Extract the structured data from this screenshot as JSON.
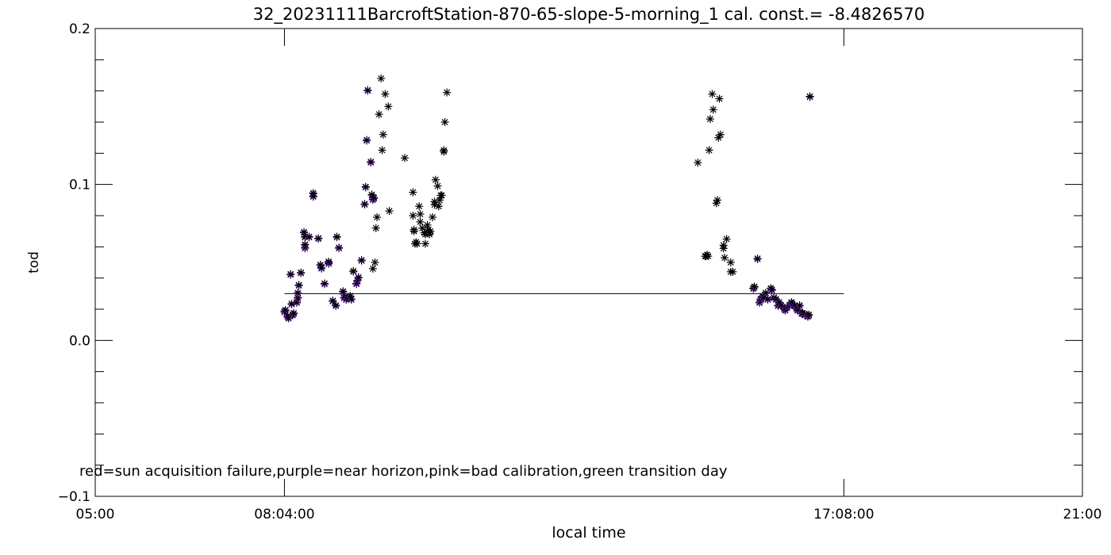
{
  "chart_data": {
    "type": "scatter",
    "title": "32_20231111BarcroftStation-870-65-slope-5-morning_1 cal. const.= -8.4826570",
    "xlabel": "local time",
    "ylabel": "tod",
    "xlim": [
      "05:00",
      "21:00"
    ],
    "ylim": [
      -0.1,
      0.2
    ],
    "x_ticks": [
      "05:00",
      "08:04:00",
      "17:08:00",
      "21:00"
    ],
    "y_ticks": [
      "-0.1",
      "0.0",
      "0.1",
      "0.2"
    ],
    "grid": false,
    "reference_line": {
      "x_start": "08:04",
      "x_end": "17:08",
      "y": 0.03
    },
    "annotation": "red=sun acquisition failure,purple=near horizon,pink=bad calibration,green transition day",
    "colors": {
      "purple": "#7a2fc9",
      "black": "#000000"
    },
    "series": [
      {
        "name": "purple",
        "points": [
          [
            "08:04",
            0.018
          ],
          [
            "08:05",
            0.019
          ],
          [
            "08:07",
            0.015
          ],
          [
            "08:08",
            0.014
          ],
          [
            "08:10",
            0.042
          ],
          [
            "08:11",
            0.023
          ],
          [
            "08:12",
            0.016
          ],
          [
            "08:13",
            0.017
          ],
          [
            "08:16",
            0.024
          ],
          [
            "08:17",
            0.027
          ],
          [
            "08:17",
            0.03
          ],
          [
            "08:18",
            0.035
          ],
          [
            "08:20",
            0.043
          ],
          [
            "08:23",
            0.069
          ],
          [
            "08:24",
            0.066
          ],
          [
            "08:24",
            0.059
          ],
          [
            "08:24",
            0.061
          ],
          [
            "08:28",
            0.066
          ],
          [
            "08:32",
            0.094
          ],
          [
            "08:32",
            0.092
          ],
          [
            "08:37",
            0.065
          ],
          [
            "08:39",
            0.048
          ],
          [
            "08:40",
            0.046
          ],
          [
            "08:43",
            0.036
          ],
          [
            "08:47",
            0.049
          ],
          [
            "08:47",
            0.05
          ],
          [
            "08:51",
            0.025
          ],
          [
            "08:54",
            0.022
          ],
          [
            "08:55",
            0.066
          ],
          [
            "08:57",
            0.059
          ],
          [
            "09:01",
            0.031
          ],
          [
            "09:02",
            0.027
          ],
          [
            "09:04",
            0.026
          ],
          [
            "09:05",
            0.027
          ],
          [
            "09:08",
            0.028
          ],
          [
            "09:09",
            0.026
          ],
          [
            "09:11",
            0.044
          ],
          [
            "09:14",
            0.036
          ],
          [
            "09:15",
            0.038
          ],
          [
            "09:16",
            0.04
          ],
          [
            "09:19",
            0.051
          ],
          [
            "09:22",
            0.087
          ],
          [
            "09:23",
            0.098
          ],
          [
            "09:24",
            0.128
          ],
          [
            "09:25",
            0.16
          ],
          [
            "09:28",
            0.114
          ],
          [
            "09:29",
            0.093
          ],
          [
            "09:30",
            0.09
          ],
          [
            "09:31",
            0.091
          ],
          [
            "15:40",
            0.033
          ],
          [
            "15:41",
            0.034
          ],
          [
            "15:44",
            0.052
          ],
          [
            "15:46",
            0.024
          ],
          [
            "15:47",
            0.026
          ],
          [
            "15:49",
            0.028
          ],
          [
            "15:50",
            0.027
          ],
          [
            "15:52",
            0.03
          ],
          [
            "15:54",
            0.026
          ],
          [
            "15:57",
            0.033
          ],
          [
            "15:58",
            0.032
          ],
          [
            "16:00",
            0.027
          ],
          [
            "16:02",
            0.026
          ],
          [
            "16:04",
            0.022
          ],
          [
            "16:05",
            0.024
          ],
          [
            "16:07",
            0.022
          ],
          [
            "16:10",
            0.02
          ],
          [
            "16:11",
            0.019
          ],
          [
            "16:13",
            0.021
          ],
          [
            "16:15",
            0.022
          ],
          [
            "16:17",
            0.024
          ],
          [
            "16:18",
            0.023
          ],
          [
            "16:20",
            0.022
          ],
          [
            "16:22",
            0.02
          ],
          [
            "16:23",
            0.019
          ],
          [
            "16:25",
            0.022
          ],
          [
            "16:27",
            0.017
          ],
          [
            "16:28",
            0.017
          ],
          [
            "16:30",
            0.016
          ],
          [
            "16:32",
            0.016
          ],
          [
            "16:33",
            0.015
          ],
          [
            "16:34",
            0.016
          ],
          [
            "16:35",
            0.156
          ]
        ]
      },
      {
        "name": "black",
        "points": [
          [
            "09:30",
            0.046
          ],
          [
            "09:32",
            0.05
          ],
          [
            "09:33",
            0.072
          ],
          [
            "09:34",
            0.079
          ],
          [
            "09:36",
            0.145
          ],
          [
            "09:38",
            0.168
          ],
          [
            "09:39",
            0.122
          ],
          [
            "09:40",
            0.132
          ],
          [
            "09:42",
            0.158
          ],
          [
            "09:45",
            0.15
          ],
          [
            "09:46",
            0.083
          ],
          [
            "10:01",
            0.117
          ],
          [
            "10:09",
            0.095
          ],
          [
            "10:09",
            0.08
          ],
          [
            "10:10",
            0.071
          ],
          [
            "10:10",
            0.07
          ],
          [
            "10:11",
            0.062
          ],
          [
            "10:12",
            0.063
          ],
          [
            "10:13",
            0.062
          ],
          [
            "10:15",
            0.086
          ],
          [
            "10:16",
            0.081
          ],
          [
            "10:16",
            0.076
          ],
          [
            "10:18",
            0.072
          ],
          [
            "10:20",
            0.069
          ],
          [
            "10:21",
            0.068
          ],
          [
            "10:21",
            0.062
          ],
          [
            "10:23",
            0.074
          ],
          [
            "10:24",
            0.071
          ],
          [
            "10:25",
            0.069
          ],
          [
            "10:25",
            0.068
          ],
          [
            "10:26",
            0.07
          ],
          [
            "10:28",
            0.079
          ],
          [
            "10:30",
            0.087
          ],
          [
            "10:30",
            0.089
          ],
          [
            "10:31",
            0.103
          ],
          [
            "10:33",
            0.099
          ],
          [
            "10:34",
            0.086
          ],
          [
            "10:35",
            0.09
          ],
          [
            "10:36",
            0.093
          ],
          [
            "10:37",
            0.093
          ],
          [
            "10:39",
            0.121
          ],
          [
            "10:39",
            0.122
          ],
          [
            "10:40",
            0.14
          ],
          [
            "10:42",
            0.159
          ],
          [
            "14:46",
            0.114
          ],
          [
            "14:53",
            0.054
          ],
          [
            "14:54",
            0.054
          ],
          [
            "14:55",
            0.055
          ],
          [
            "14:56",
            0.054
          ],
          [
            "14:57",
            0.122
          ],
          [
            "14:58",
            0.142
          ],
          [
            "15:00",
            0.158
          ],
          [
            "15:01",
            0.148
          ],
          [
            "15:04",
            0.088
          ],
          [
            "15:05",
            0.09
          ],
          [
            "15:06",
            0.13
          ],
          [
            "15:07",
            0.155
          ],
          [
            "15:08",
            0.132
          ],
          [
            "15:11",
            0.061
          ],
          [
            "15:11",
            0.059
          ],
          [
            "15:12",
            0.053
          ],
          [
            "15:14",
            0.065
          ],
          [
            "15:18",
            0.044
          ],
          [
            "15:18",
            0.05
          ],
          [
            "15:20",
            0.044
          ]
        ]
      }
    ]
  }
}
